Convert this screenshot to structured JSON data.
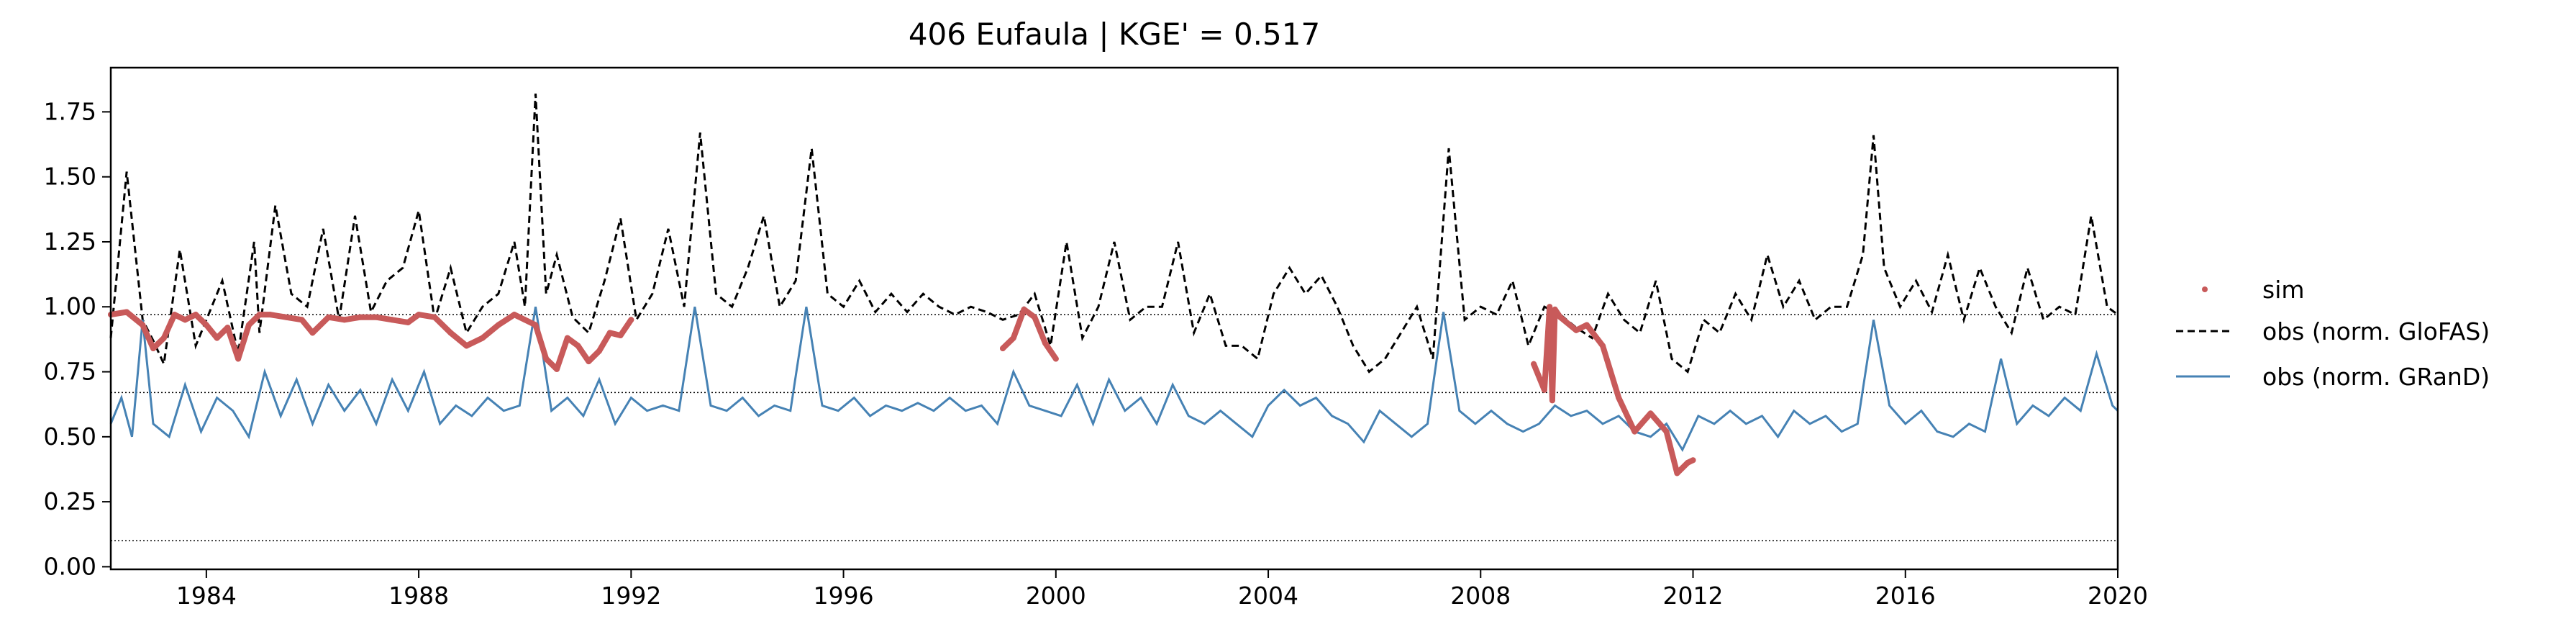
{
  "chart_data": {
    "type": "line",
    "title": "406  Eufaula | KGE' = 0.517",
    "xlabel": "",
    "ylabel": "",
    "xlim": [
      1982.2,
      2020.0
    ],
    "ylim": [
      -0.01,
      1.92
    ],
    "x_ticks": [
      1984,
      1988,
      1992,
      1996,
      2000,
      2004,
      2008,
      2012,
      2016,
      2020
    ],
    "x_tick_labels": [
      "1984",
      "1988",
      "1992",
      "1996",
      "2000",
      "2004",
      "2008",
      "2012",
      "2016",
      "2020"
    ],
    "y_ticks": [
      0.0,
      0.25,
      0.5,
      0.75,
      1.0,
      1.25,
      1.5,
      1.75
    ],
    "y_tick_labels": [
      "0.00",
      "0.25",
      "0.50",
      "0.75",
      "1.00",
      "1.25",
      "1.50",
      "1.75"
    ],
    "grid": false,
    "legend_placement": "outside-right",
    "reference_lines": [
      0.97,
      0.67,
      0.1
    ],
    "series": [
      {
        "name": "sim",
        "style": "points",
        "color": "#c85a5a",
        "segments": [
          {
            "x": [
              1982.2,
              1982.5,
              1982.8,
              1983.0,
              1983.2,
              1983.4,
              1983.6,
              1983.8,
              1984.0,
              1984.2,
              1984.4,
              1984.6,
              1984.8,
              1985.0,
              1985.2,
              1985.5,
              1985.8,
              1986.0,
              1986.3,
              1986.6,
              1986.9,
              1987.2,
              1987.5,
              1987.8,
              1988.0,
              1988.3,
              1988.6,
              1988.9,
              1989.2,
              1989.5,
              1989.8,
              1990.0,
              1990.2,
              1990.4,
              1990.6,
              1990.8,
              1991.0,
              1991.2,
              1991.4,
              1991.6,
              1991.8,
              1992.0
            ],
            "y": [
              0.97,
              0.98,
              0.93,
              0.84,
              0.88,
              0.97,
              0.95,
              0.97,
              0.93,
              0.88,
              0.92,
              0.8,
              0.93,
              0.97,
              0.97,
              0.96,
              0.95,
              0.9,
              0.96,
              0.95,
              0.96,
              0.96,
              0.95,
              0.94,
              0.97,
              0.96,
              0.9,
              0.85,
              0.88,
              0.93,
              0.97,
              0.95,
              0.93,
              0.8,
              0.76,
              0.88,
              0.85,
              0.79,
              0.83,
              0.9,
              0.89,
              0.95
            ]
          },
          {
            "x": [
              1999.0,
              1999.2,
              1999.4,
              1999.6,
              1999.8,
              2000.0
            ],
            "y": [
              0.84,
              0.88,
              0.99,
              0.96,
              0.86,
              0.8
            ]
          },
          {
            "x": [
              2009.0,
              2009.2,
              2009.3,
              2009.35,
              2009.4,
              2009.5,
              2009.8,
              2010.0,
              2010.3,
              2010.6,
              2010.9,
              2011.2,
              2011.5,
              2011.7,
              2011.9,
              2012.0
            ],
            "y": [
              0.78,
              0.68,
              1.0,
              0.64,
              0.99,
              0.96,
              0.91,
              0.93,
              0.85,
              0.65,
              0.52,
              0.59,
              0.52,
              0.36,
              0.4,
              0.41
            ]
          }
        ]
      },
      {
        "name": "obs (norm. GloFAS)",
        "style": "dashed",
        "color": "#000000",
        "x": [
          1982.2,
          1982.5,
          1982.8,
          1983.0,
          1983.2,
          1983.5,
          1983.8,
          1984.0,
          1984.3,
          1984.6,
          1984.9,
          1985.0,
          1985.3,
          1985.6,
          1985.9,
          1986.2,
          1986.5,
          1986.8,
          1987.1,
          1987.4,
          1987.7,
          1988.0,
          1988.3,
          1988.6,
          1988.9,
          1989.2,
          1989.5,
          1989.8,
          1990.0,
          1990.2,
          1990.4,
          1990.6,
          1990.9,
          1991.2,
          1991.5,
          1991.8,
          1992.1,
          1992.4,
          1992.7,
          1993.0,
          1993.3,
          1993.6,
          1993.9,
          1994.2,
          1994.5,
          1994.8,
          1995.1,
          1995.4,
          1995.7,
          1996.0,
          1996.3,
          1996.6,
          1996.9,
          1997.2,
          1997.5,
          1997.8,
          1998.1,
          1998.4,
          1998.7,
          1999.0,
          1999.3,
          1999.6,
          1999.9,
          2000.2,
          2000.5,
          2000.8,
          2001.1,
          2001.4,
          2001.7,
          2002.0,
          2002.3,
          2002.6,
          2002.9,
          2003.2,
          2003.5,
          2003.8,
          2004.1,
          2004.4,
          2004.7,
          2005.0,
          2005.3,
          2005.6,
          2005.9,
          2006.2,
          2006.5,
          2006.8,
          2007.1,
          2007.4,
          2007.7,
          2008.0,
          2008.3,
          2008.6,
          2008.9,
          2009.2,
          2009.5,
          2009.8,
          2010.1,
          2010.4,
          2010.7,
          2011.0,
          2011.3,
          2011.6,
          2011.9,
          2012.2,
          2012.5,
          2012.8,
          2013.1,
          2013.4,
          2013.7,
          2014.0,
          2014.3,
          2014.6,
          2014.9,
          2015.2,
          2015.4,
          2015.6,
          2015.9,
          2016.2,
          2016.5,
          2016.8,
          2017.1,
          2017.4,
          2017.7,
          2018.0,
          2018.3,
          2018.6,
          2018.9,
          2019.2,
          2019.5,
          2019.8,
          2020.0
        ],
        "y": [
          0.88,
          1.52,
          0.95,
          0.87,
          0.78,
          1.22,
          0.85,
          0.95,
          1.1,
          0.82,
          1.25,
          0.9,
          1.39,
          1.05,
          1.0,
          1.3,
          0.95,
          1.35,
          0.98,
          1.1,
          1.15,
          1.37,
          0.95,
          1.15,
          0.9,
          1.0,
          1.05,
          1.25,
          1.0,
          1.82,
          1.05,
          1.2,
          0.96,
          0.9,
          1.1,
          1.34,
          0.95,
          1.05,
          1.3,
          1.0,
          1.67,
          1.05,
          1.0,
          1.15,
          1.35,
          1.0,
          1.1,
          1.61,
          1.05,
          1.0,
          1.1,
          0.98,
          1.05,
          0.98,
          1.05,
          1.0,
          0.97,
          1.0,
          0.98,
          0.95,
          0.97,
          1.05,
          0.85,
          1.25,
          0.88,
          1.0,
          1.25,
          0.95,
          1.0,
          1.0,
          1.25,
          0.9,
          1.05,
          0.85,
          0.85,
          0.8,
          1.05,
          1.15,
          1.05,
          1.12,
          1.0,
          0.85,
          0.75,
          0.8,
          0.9,
          1.0,
          0.8,
          1.61,
          0.95,
          1.0,
          0.97,
          1.1,
          0.85,
          1.0,
          0.97,
          0.92,
          0.88,
          1.05,
          0.95,
          0.9,
          1.1,
          0.8,
          0.75,
          0.95,
          0.9,
          1.05,
          0.95,
          1.2,
          1.0,
          1.1,
          0.95,
          1.0,
          1.0,
          1.2,
          1.66,
          1.15,
          1.0,
          1.1,
          0.98,
          1.2,
          0.95,
          1.15,
          1.0,
          0.9,
          1.15,
          0.95,
          1.0,
          0.97,
          1.35,
          1.0,
          0.97
        ]
      },
      {
        "name": "obs (norm. GRanD)",
        "style": "solid",
        "color": "#4682b4",
        "x": [
          1982.2,
          1982.4,
          1982.6,
          1982.8,
          1983.0,
          1983.3,
          1983.6,
          1983.9,
          1984.2,
          1984.5,
          1984.8,
          1985.1,
          1985.4,
          1985.7,
          1986.0,
          1986.3,
          1986.6,
          1986.9,
          1987.2,
          1987.5,
          1987.8,
          1988.1,
          1988.4,
          1988.7,
          1989.0,
          1989.3,
          1989.6,
          1989.9,
          1990.2,
          1990.5,
          1990.8,
          1991.1,
          1991.4,
          1991.7,
          1992.0,
          1992.3,
          1992.6,
          1992.9,
          1993.2,
          1993.5,
          1993.8,
          1994.1,
          1994.4,
          1994.7,
          1995.0,
          1995.3,
          1995.6,
          1995.9,
          1996.2,
          1996.5,
          1996.8,
          1997.1,
          1997.4,
          1997.7,
          1998.0,
          1998.3,
          1998.6,
          1998.9,
          1999.2,
          1999.5,
          1999.8,
          2000.1,
          2000.4,
          2000.7,
          2001.0,
          2001.3,
          2001.6,
          2001.9,
          2002.2,
          2002.5,
          2002.8,
          2003.1,
          2003.4,
          2003.7,
          2004.0,
          2004.3,
          2004.6,
          2004.9,
          2005.2,
          2005.5,
          2005.8,
          2006.1,
          2006.4,
          2006.7,
          2007.0,
          2007.3,
          2007.6,
          2007.9,
          2008.2,
          2008.5,
          2008.8,
          2009.1,
          2009.4,
          2009.7,
          2010.0,
          2010.3,
          2010.6,
          2010.9,
          2011.2,
          2011.5,
          2011.8,
          2012.1,
          2012.4,
          2012.7,
          2013.0,
          2013.3,
          2013.6,
          2013.9,
          2014.2,
          2014.5,
          2014.8,
          2015.1,
          2015.4,
          2015.7,
          2016.0,
          2016.3,
          2016.6,
          2016.9,
          2017.2,
          2017.5,
          2017.8,
          2018.1,
          2018.4,
          2018.7,
          2019.0,
          2019.3,
          2019.6,
          2019.9,
          2020.0
        ],
        "y": [
          0.55,
          0.65,
          0.5,
          0.95,
          0.55,
          0.5,
          0.7,
          0.52,
          0.65,
          0.6,
          0.5,
          0.75,
          0.58,
          0.72,
          0.55,
          0.7,
          0.6,
          0.68,
          0.55,
          0.72,
          0.6,
          0.75,
          0.55,
          0.62,
          0.58,
          0.65,
          0.6,
          0.62,
          1.0,
          0.6,
          0.65,
          0.58,
          0.72,
          0.55,
          0.65,
          0.6,
          0.62,
          0.6,
          1.0,
          0.62,
          0.6,
          0.65,
          0.58,
          0.62,
          0.6,
          1.0,
          0.62,
          0.6,
          0.65,
          0.58,
          0.62,
          0.6,
          0.63,
          0.6,
          0.65,
          0.6,
          0.62,
          0.55,
          0.75,
          0.62,
          0.6,
          0.58,
          0.7,
          0.55,
          0.72,
          0.6,
          0.65,
          0.55,
          0.7,
          0.58,
          0.55,
          0.6,
          0.55,
          0.5,
          0.62,
          0.68,
          0.62,
          0.65,
          0.58,
          0.55,
          0.48,
          0.6,
          0.55,
          0.5,
          0.55,
          0.98,
          0.6,
          0.55,
          0.6,
          0.55,
          0.52,
          0.55,
          0.62,
          0.58,
          0.6,
          0.55,
          0.58,
          0.52,
          0.5,
          0.55,
          0.45,
          0.58,
          0.55,
          0.6,
          0.55,
          0.58,
          0.5,
          0.6,
          0.55,
          0.58,
          0.52,
          0.55,
          0.95,
          0.62,
          0.55,
          0.6,
          0.52,
          0.5,
          0.55,
          0.52,
          0.8,
          0.55,
          0.62,
          0.58,
          0.65,
          0.6,
          0.82,
          0.62,
          0.6
        ]
      }
    ],
    "legend": [
      {
        "label": "sim",
        "marker": "point",
        "color": "#c85a5a"
      },
      {
        "label": "obs (norm. GloFAS)",
        "marker": "dashed-line",
        "color": "#000000"
      },
      {
        "label": "obs (norm. GRanD)",
        "marker": "solid-line",
        "color": "#4682b4"
      }
    ]
  }
}
